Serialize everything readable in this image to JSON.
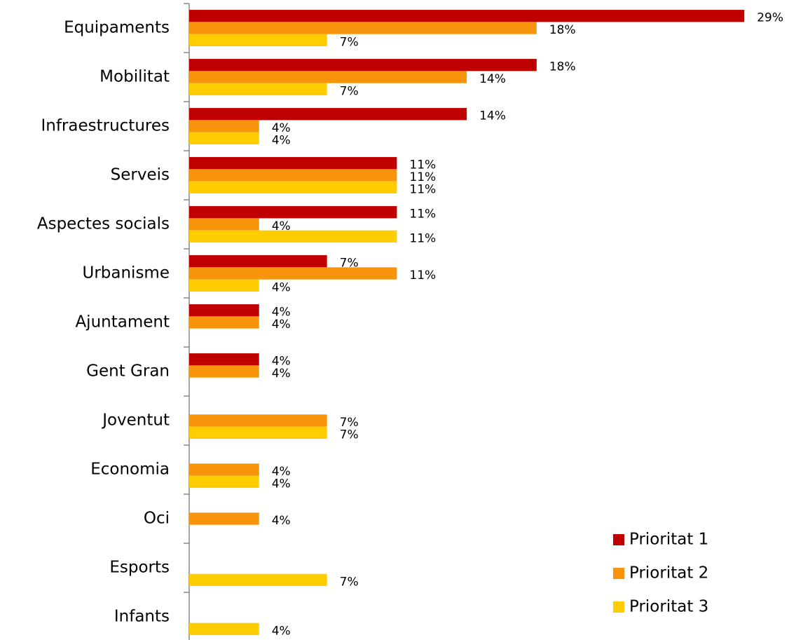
{
  "chart_data": {
    "type": "barh",
    "categories": [
      "Equipaments",
      "Mobilitat",
      "Infraestructures",
      "Serveis",
      "Aspectes socials",
      "Urbanisme",
      "Ajuntament",
      "Gent Gran",
      "Joventut",
      "Economia",
      "Oci",
      "Esports",
      "Infants"
    ],
    "series": [
      {
        "name": "Prioritat 1",
        "color": "#c00000",
        "values": [
          28.6,
          17.9,
          14.3,
          10.7,
          10.7,
          7.1,
          3.6,
          3.6,
          null,
          null,
          null,
          null,
          null
        ],
        "value_labels": [
          "29%",
          "18%",
          "14%",
          "11%",
          "11%",
          "7%",
          "4%",
          "4%",
          null,
          null,
          null,
          null,
          null
        ]
      },
      {
        "name": "Prioritat 2",
        "color": "#f7940c",
        "values": [
          17.9,
          14.3,
          3.6,
          10.7,
          3.6,
          10.7,
          3.6,
          3.6,
          7.1,
          3.6,
          3.6,
          null,
          null
        ],
        "value_labels": [
          "18%",
          "14%",
          "4%",
          "11%",
          "4%",
          "11%",
          "4%",
          "4%",
          "7%",
          "4%",
          "4%",
          null,
          null
        ]
      },
      {
        "name": "Prioritat 3",
        "color": "#ffcc00",
        "values": [
          7.1,
          7.1,
          3.6,
          10.7,
          10.7,
          3.6,
          null,
          null,
          7.1,
          3.6,
          null,
          7.1,
          3.6
        ],
        "value_labels": [
          "7%",
          "7%",
          "4%",
          "11%",
          "11%",
          "4%",
          null,
          null,
          "7%",
          "4%",
          null,
          "7%",
          "4%"
        ]
      }
    ],
    "xlim": [
      0,
      30
    ],
    "legend": "lower right"
  }
}
